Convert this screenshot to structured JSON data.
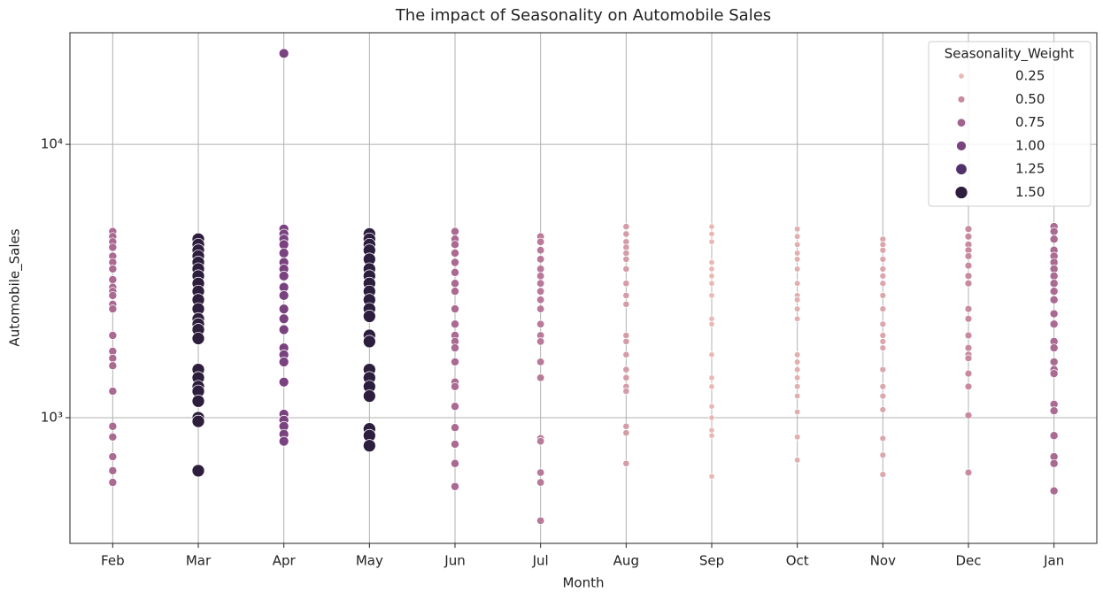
{
  "chart_data": {
    "type": "scatter",
    "title": "The impact of Seasonality on Automobile Sales",
    "x_label": "Month",
    "y_label": "Automobile_Sales",
    "categories": [
      "Feb",
      "Mar",
      "Apr",
      "May",
      "Jun",
      "Jul",
      "Aug",
      "Sep",
      "Oct",
      "Nov",
      "Dec",
      "Jan"
    ],
    "values": [
      [
        4800,
        4600,
        4400,
        4200,
        3900,
        3700,
        3500,
        3200,
        3000,
        2900,
        2800,
        2600,
        2500,
        2000,
        1750,
        1650,
        1550,
        1250,
        930,
        850,
        720,
        640,
        580
      ],
      [
        4500,
        4300,
        4100,
        3900,
        3700,
        3500,
        3300,
        3100,
        2900,
        2700,
        2500,
        2300,
        2200,
        2100,
        1950,
        1500,
        1400,
        1300,
        1250,
        1150,
        1000,
        970,
        640
      ],
      [
        21500,
        4900,
        4700,
        4500,
        4300,
        4000,
        3700,
        3500,
        3300,
        3000,
        2800,
        2500,
        2300,
        2100,
        1800,
        1700,
        1600,
        1350,
        1030,
        980,
        930,
        870,
        820
      ],
      [
        4700,
        4500,
        4300,
        4100,
        3800,
        3500,
        3300,
        3100,
        2900,
        2700,
        2500,
        2350,
        2000,
        1900,
        1500,
        1400,
        1300,
        1200,
        910,
        860,
        790
      ],
      [
        4800,
        4500,
        4300,
        4000,
        3700,
        3400,
        3100,
        2900,
        2500,
        2200,
        2000,
        1900,
        1800,
        1600,
        1350,
        1300,
        1100,
        920,
        800,
        680,
        560
      ],
      [
        4600,
        4400,
        4100,
        3800,
        3500,
        3300,
        3100,
        2900,
        2700,
        2500,
        2200,
        2000,
        1900,
        1600,
        1400,
        840,
        820,
        630,
        580,
        420
      ],
      [
        5000,
        4700,
        4400,
        4200,
        4000,
        3800,
        3500,
        3100,
        2800,
        2600,
        2000,
        1900,
        1700,
        1500,
        1400,
        1300,
        1250,
        930,
        880,
        680
      ],
      [
        5000,
        4700,
        4400,
        3700,
        3500,
        3300,
        3100,
        2800,
        2300,
        2200,
        1700,
        1400,
        1300,
        1100,
        1000,
        900,
        860,
        610
      ],
      [
        4900,
        4600,
        4300,
        4000,
        3800,
        3500,
        3100,
        2800,
        2700,
        2500,
        2300,
        1700,
        1600,
        1500,
        1400,
        1300,
        1200,
        1050,
        850,
        700
      ],
      [
        4500,
        4300,
        4100,
        3800,
        3500,
        3300,
        3100,
        2800,
        2500,
        2200,
        2000,
        1900,
        1800,
        1500,
        1300,
        1200,
        1070,
        840,
        730,
        620
      ],
      [
        4900,
        4600,
        4300,
        4100,
        3900,
        3600,
        3300,
        3100,
        2500,
        2300,
        2000,
        1800,
        1700,
        1650,
        1450,
        1300,
        1020,
        630
      ],
      [
        5000,
        4800,
        4500,
        4100,
        3900,
        3700,
        3500,
        3300,
        3100,
        2900,
        2700,
        2400,
        2200,
        1900,
        1800,
        1600,
        1500,
        1450,
        1120,
        1060,
        860,
        720,
        680,
        540
      ]
    ],
    "weights": [
      0.7,
      1.5,
      1.0,
      1.5,
      0.7,
      0.6,
      0.4,
      0.25,
      0.3,
      0.35,
      0.5,
      0.7
    ],
    "ylim": [
      347,
      25600
    ],
    "log_y": true,
    "grid": true,
    "yticks": [
      {
        "value": 1000,
        "label": "10³"
      },
      {
        "value": 10000,
        "label": "10⁴"
      }
    ],
    "legend": {
      "title": "Seasonality_Weight",
      "position": "upper right",
      "entries": [
        {
          "value": 0.25,
          "label": "0.25",
          "color": "#e7b8b4"
        },
        {
          "value": 0.5,
          "label": "0.50",
          "color": "#c88aa0"
        },
        {
          "value": 0.75,
          "label": "0.75",
          "color": "#a2628f"
        },
        {
          "value": 1.0,
          "label": "1.00",
          "color": "#7a4380"
        },
        {
          "value": 1.25,
          "label": "1.25",
          "color": "#52306b"
        },
        {
          "value": 1.5,
          "label": "1.50",
          "color": "#2d1e3e"
        }
      ]
    }
  }
}
